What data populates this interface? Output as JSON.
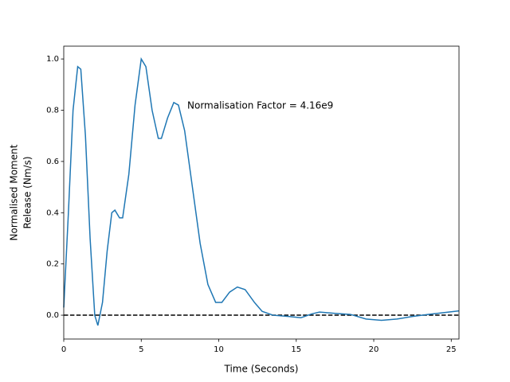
{
  "chart_data": {
    "type": "line",
    "xlabel": "Time (Seconds)",
    "ylabel": [
      "Normalised Moment",
      "Release (Nm/s)"
    ],
    "annotation": "Normalisation Factor = 4.16e9",
    "x": [
      0,
      0.3,
      0.6,
      0.9,
      1.1,
      1.4,
      1.7,
      2.0,
      2.2,
      2.5,
      2.8,
      3.1,
      3.3,
      3.6,
      3.8,
      4.2,
      4.6,
      5.0,
      5.3,
      5.7,
      6.1,
      6.3,
      6.7,
      7.1,
      7.4,
      7.8,
      8.3,
      8.8,
      9.3,
      9.8,
      10.2,
      10.7,
      11.2,
      11.7,
      12.3,
      12.8,
      13.5,
      14.5,
      15.3,
      16.0,
      16.5,
      17.5,
      18.5,
      19.5,
      20.5,
      21.5,
      22.5,
      23.5,
      24.5,
      25.5
    ],
    "series": [
      {
        "name": "moment",
        "color": "#1f77b4",
        "values": [
          0.03,
          0.4,
          0.8,
          0.97,
          0.96,
          0.7,
          0.3,
          0.0,
          -0.04,
          0.05,
          0.25,
          0.4,
          0.41,
          0.38,
          0.38,
          0.55,
          0.82,
          1.0,
          0.97,
          0.8,
          0.69,
          0.69,
          0.77,
          0.83,
          0.82,
          0.72,
          0.5,
          0.28,
          0.12,
          0.05,
          0.05,
          0.09,
          0.11,
          0.1,
          0.05,
          0.015,
          0.0,
          -0.005,
          -0.01,
          0.005,
          0.012,
          0.007,
          0.003,
          -0.015,
          -0.02,
          -0.015,
          -0.005,
          0.003,
          0.01,
          0.017
        ]
      }
    ],
    "hline": 0,
    "xlim": [
      0,
      25.5
    ],
    "ylim": [
      -0.093,
      1.05
    ],
    "xticks": [
      0,
      5,
      10,
      15,
      20,
      25
    ],
    "yticks": [
      {
        "value": 0,
        "label": "0.0"
      },
      {
        "value": 0.2,
        "label": "0.2"
      },
      {
        "value": 0.4,
        "label": "0.4"
      },
      {
        "value": 0.6,
        "label": "0.6"
      },
      {
        "value": 0.8,
        "label": "0.8"
      },
      {
        "value": 1.0,
        "label": "1.0"
      }
    ]
  }
}
